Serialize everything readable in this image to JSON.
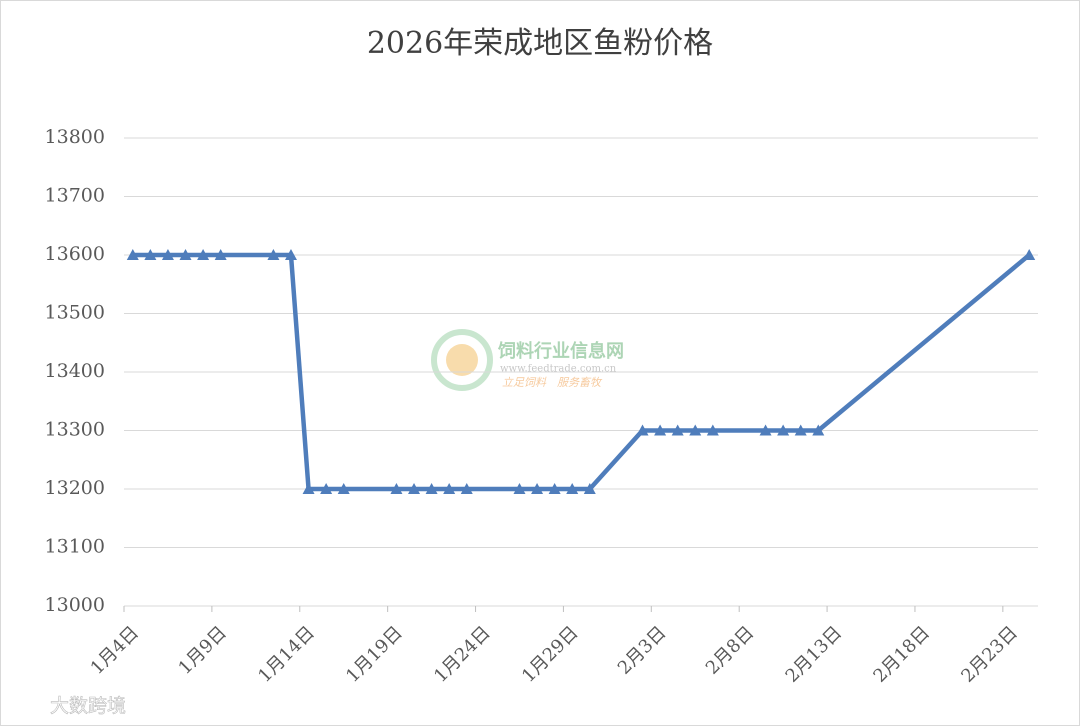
{
  "chart_data": {
    "type": "line",
    "title": "2026年荣成地区鱼粉价格",
    "x": [
      "1月4日",
      "1月5日",
      "1月6日",
      "1月7日",
      "1月8日",
      "1月9日",
      "1月12日",
      "1月13日",
      "1月14日",
      "1月15日",
      "1月16日",
      "1月19日",
      "1月20日",
      "1月21日",
      "1月22日",
      "1月23日",
      "1月26日",
      "1月27日",
      "1月28日",
      "1月29日",
      "1月30日",
      "2月2日",
      "2月3日",
      "2月4日",
      "2月5日",
      "2月6日",
      "2月9日",
      "2月10日",
      "2月11日",
      "2月12日",
      "2月24日"
    ],
    "series": [
      {
        "name": "价格",
        "color": "#4f7dbb",
        "values": [
          13600,
          13600,
          13600,
          13600,
          13600,
          13600,
          13600,
          13600,
          13200,
          13200,
          13200,
          13200,
          13200,
          13200,
          13200,
          13200,
          13200,
          13200,
          13200,
          13200,
          13200,
          13300,
          13300,
          13300,
          13300,
          13300,
          13300,
          13300,
          13300,
          13300,
          13600
        ]
      }
    ],
    "xlim": [
      "1月4日",
      "2月25日"
    ],
    "xticks": [
      "1月4日",
      "1月9日",
      "1月14日",
      "1月19日",
      "1月24日",
      "1月29日",
      "2月3日",
      "2月8日",
      "2月13日",
      "2月18日",
      "2月23日"
    ],
    "ylim": [
      13000,
      13800
    ],
    "yticks": [
      13000,
      13100,
      13200,
      13300,
      13400,
      13500,
      13600,
      13700,
      13800
    ],
    "grid": true,
    "watermark": "饲料行业信息网",
    "watermark_url": "www.feedtrade.com.cn",
    "watermark_slogan": "立足饲料　服务畜牧",
    "source_mark": "大数跨境"
  }
}
